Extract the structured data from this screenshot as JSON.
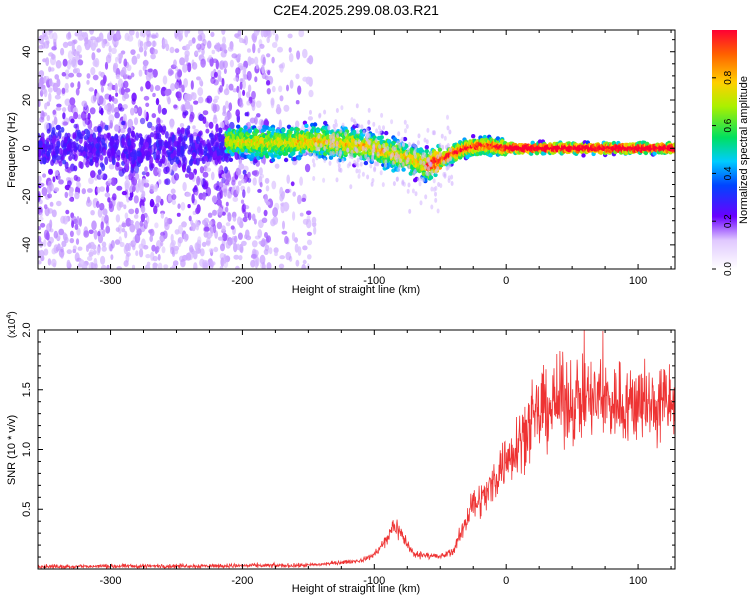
{
  "title": "C2E4.2025.299.08.03.R21",
  "chart_data": [
    {
      "type": "heatmap",
      "xlabel": "Height of straight line (km)",
      "ylabel": "Frequency (Hz)",
      "xlim": [
        -355,
        128
      ],
      "ylim": [
        -50,
        49
      ],
      "xticks": [
        -300,
        -200,
        -100,
        0,
        100
      ],
      "yticks": [
        -40,
        -20,
        0,
        20,
        40
      ],
      "ridge_profile": {
        "x": [
          -210,
          -180,
          -150,
          -120,
          -100,
          -80,
          -60,
          -50,
          -40,
          -30,
          -20,
          -10,
          0,
          128
        ],
        "y": [
          3,
          2,
          3,
          2,
          0,
          -3,
          -7,
          -5,
          -2,
          0,
          1,
          1,
          0,
          0
        ]
      },
      "colorbar": {
        "label": "Normalized spectral amplitude",
        "range": [
          0,
          1
        ],
        "ticks": [
          0.0,
          0.2,
          0.4,
          0.6,
          0.8
        ]
      }
    },
    {
      "type": "line",
      "xlabel": "Height of straight line (km)",
      "ylabel": "SNR (10 * v/v)",
      "scale_label": "(x10",
      "scale_exponent": "4",
      "xlim": [
        -355,
        128
      ],
      "ylim": [
        0,
        2.0
      ],
      "xticks": [
        -300,
        -200,
        -100,
        0,
        100
      ],
      "yticks": [
        0.5,
        1.0,
        1.5,
        2.0
      ],
      "series": [
        {
          "name": "SNR",
          "color": "#ee3333",
          "envelope_x": [
            -355,
            -150,
            -110,
            -100,
            -90,
            -85,
            -80,
            -70,
            -60,
            -50,
            -40,
            -35,
            -30,
            -25,
            -20,
            -15,
            -10,
            -5,
            0,
            5,
            10,
            20,
            30,
            40,
            60,
            80,
            100,
            128
          ],
          "envelope_y": [
            0.02,
            0.03,
            0.07,
            0.12,
            0.25,
            0.38,
            0.3,
            0.12,
            0.12,
            0.1,
            0.15,
            0.28,
            0.42,
            0.55,
            0.58,
            0.62,
            0.72,
            0.85,
            0.9,
            1.0,
            1.1,
            1.22,
            1.35,
            1.4,
            1.42,
            1.4,
            1.38,
            1.38
          ]
        }
      ]
    }
  ]
}
